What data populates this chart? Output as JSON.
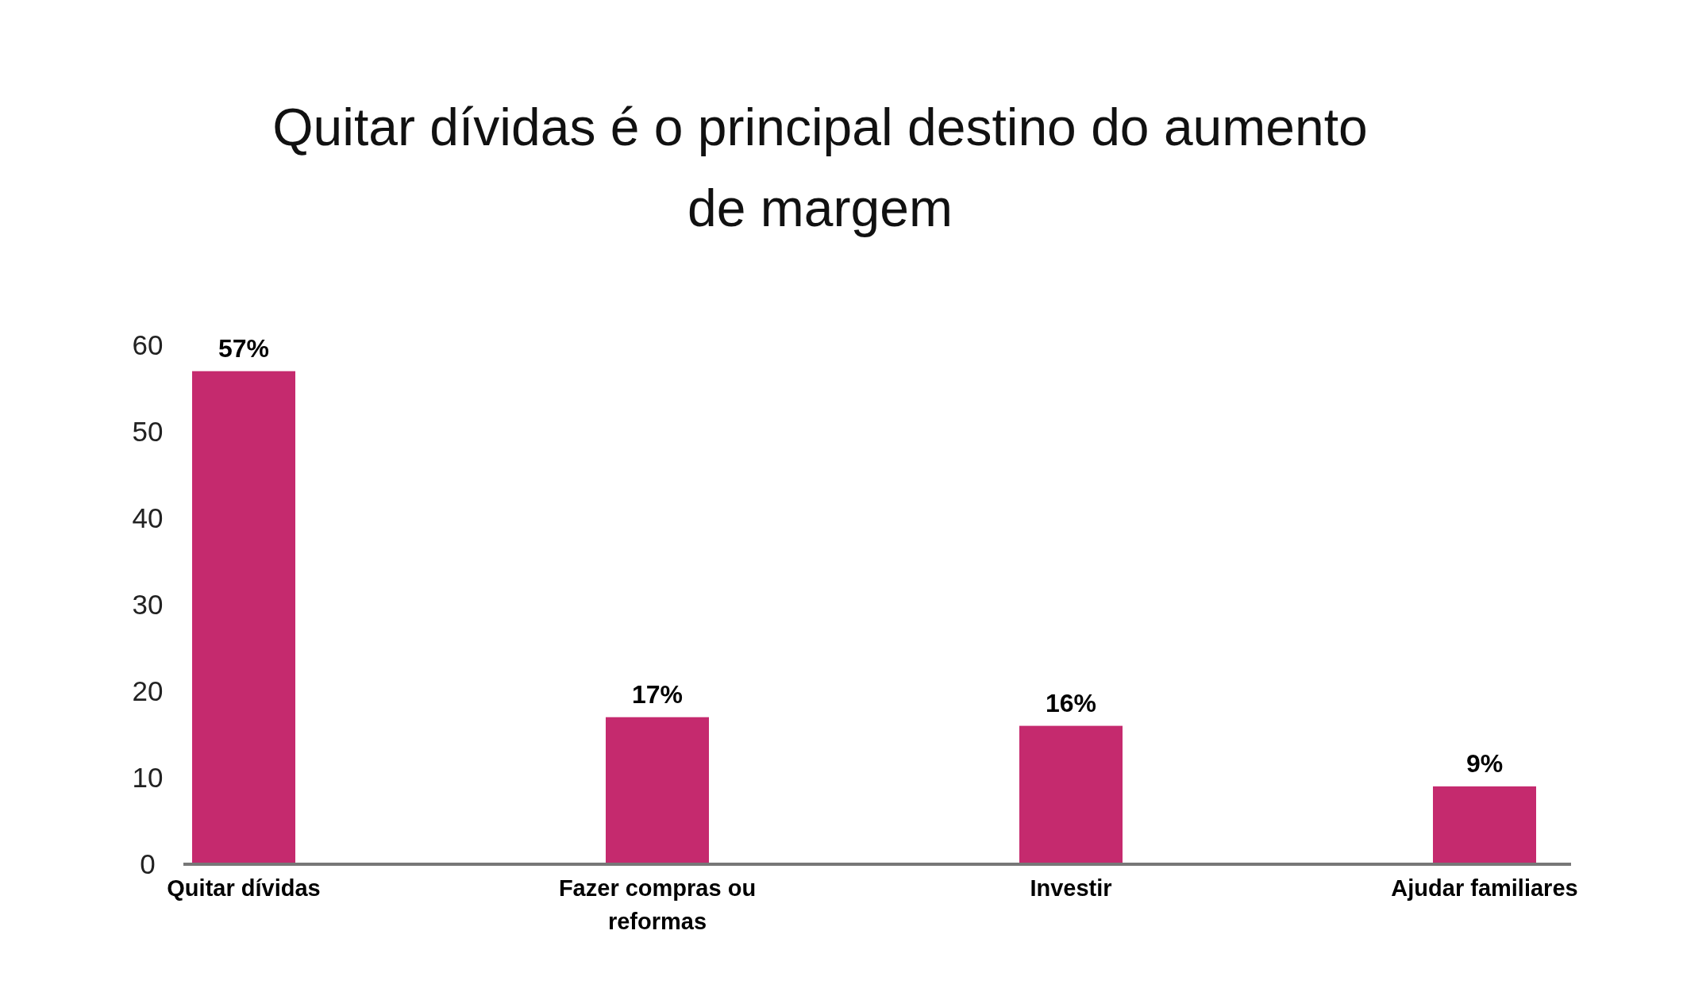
{
  "chart_data": {
    "type": "bar",
    "title": "Quitar dívidas é o principal destino do aumento de margem",
    "categories": [
      "Quitar dívidas",
      "Fazer compras ou reformas",
      "Investir",
      "Ajudar familiares"
    ],
    "values": [
      57,
      17,
      16,
      9
    ],
    "value_labels": [
      "57%",
      "17%",
      "16%",
      "9%"
    ],
    "color": "#c52a6e",
    "ylim": [
      0,
      60
    ],
    "yticks": [
      0,
      10,
      20,
      30,
      40,
      50,
      60
    ]
  }
}
